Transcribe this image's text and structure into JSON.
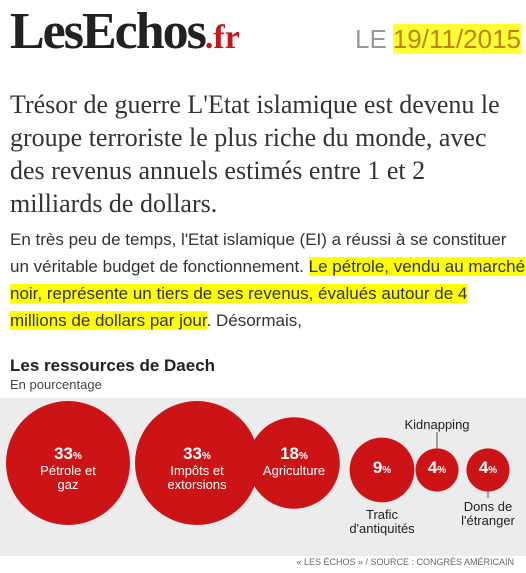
{
  "header": {
    "logo": "LesEchos",
    "logo_suffix": ".fr",
    "date_prefix": "LE",
    "date": "19/11/2015"
  },
  "headline": "Trésor de guerre L'Etat islamique est devenu le groupe terroriste le plus riche du monde, avec des revenus annuels estimés entre 1 et 2 milliards de dollars.",
  "body": {
    "before": "En très peu de temps, l'Etat islamique (EI) a réussi à se constituer un véritable budget de fonctionnement. ",
    "highlight": "Le pétrole, vendu au marché noir, représente un tiers de ses revenus, évalués autour de 4 millions de dollars par jour",
    "after": ". Désormais,"
  },
  "chart_data": {
    "type": "bubble",
    "title": "Les ressources de Daech",
    "subtitle": "En pourcentage",
    "categories": [
      "Pétrole et gaz",
      "Impôts et extorsions",
      "Agriculture",
      "Trafic d'antiquités",
      "Kidnapping",
      "Dons de l'étranger"
    ],
    "values": [
      33,
      33,
      18,
      9,
      4,
      4
    ],
    "unit": "%",
    "color": "#cc1417",
    "source": "« LES ÉCHOS » / SOURCE : CONGRÈS AMÉRICAIN"
  }
}
